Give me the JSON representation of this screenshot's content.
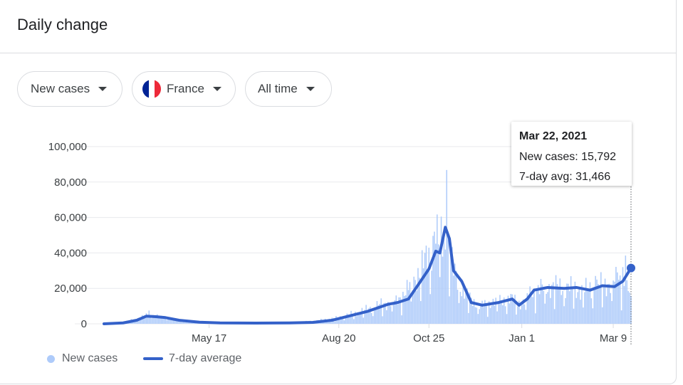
{
  "card": {
    "title": "Daily change"
  },
  "filters": {
    "metric": "New cases",
    "country": "France",
    "range": "All time"
  },
  "flag_colors": [
    "#002395",
    "#ffffff",
    "#ed2939"
  ],
  "tooltip": {
    "date": "Mar 22, 2021",
    "new_cases_label": "New cases: 15,792",
    "avg_label": "7-day avg: 31,466"
  },
  "legend": {
    "new_cases": "New cases",
    "avg": "7-day average"
  },
  "colors": {
    "bars": "#aecbfa",
    "line": "#3461c9",
    "grid": "#e8eaed"
  },
  "chart_data": {
    "type": "bar",
    "x_start": "2020-03-01",
    "x_end": "2021-03-22",
    "ylim": [
      0,
      100000
    ],
    "yticks": [
      0,
      20000,
      40000,
      60000,
      80000,
      100000
    ],
    "ytick_labels": [
      "0",
      "20,000",
      "40,000",
      "60,000",
      "80,000",
      "100,000"
    ],
    "xticks": [
      {
        "date": "2020-05-17",
        "label": "May 17"
      },
      {
        "date": "2020-08-20",
        "label": "Aug 20"
      },
      {
        "date": "2020-10-25",
        "label": "Oct 25"
      },
      {
        "date": "2021-01-01",
        "label": "Jan 1"
      },
      {
        "date": "2021-03-09",
        "label": "Mar 9"
      }
    ],
    "grid": true,
    "legend_position": "bottom-left",
    "series": [
      {
        "name": "New cases",
        "type": "bar",
        "anchors": [
          [
            "2020-03-01",
            0
          ],
          [
            "2020-03-15",
            800
          ],
          [
            "2020-03-28",
            3500
          ],
          [
            "2020-04-02",
            5000
          ],
          [
            "2020-04-10",
            4000
          ],
          [
            "2020-04-20",
            2500
          ],
          [
            "2020-05-01",
            1000
          ],
          [
            "2020-05-17",
            500
          ],
          [
            "2020-06-15",
            400
          ],
          [
            "2020-07-15",
            600
          ],
          [
            "2020-08-01",
            1500
          ],
          [
            "2020-08-20",
            3500
          ],
          [
            "2020-09-05",
            7000
          ],
          [
            "2020-09-20",
            11000
          ],
          [
            "2020-10-01",
            12500
          ],
          [
            "2020-10-10",
            20000
          ],
          [
            "2020-10-20",
            32000
          ],
          [
            "2020-10-28",
            44000
          ],
          [
            "2020-11-02",
            50000
          ],
          [
            "2020-11-07",
            48000
          ],
          [
            "2020-11-12",
            30000
          ],
          [
            "2020-11-20",
            17000
          ],
          [
            "2020-12-01",
            10000
          ],
          [
            "2020-12-15",
            13000
          ],
          [
            "2020-12-25",
            14000
          ],
          [
            "2021-01-01",
            11000
          ],
          [
            "2021-01-08",
            18000
          ],
          [
            "2021-01-20",
            21000
          ],
          [
            "2021-02-01",
            21000
          ],
          [
            "2021-02-15",
            19000
          ],
          [
            "2021-03-01",
            22000
          ],
          [
            "2021-03-15",
            25000
          ],
          [
            "2021-03-22",
            15792
          ]
        ],
        "spikes": [
          [
            "2020-04-03",
            7500
          ],
          [
            "2020-11-07",
            86800
          ],
          [
            "2020-11-03",
            60500
          ],
          [
            "2020-10-29",
            52000
          ],
          [
            "2021-03-18",
            38500
          ],
          [
            "2021-03-16",
            32000
          ],
          [
            "2021-03-12",
            29000
          ],
          [
            "2021-02-24",
            27000
          ]
        ]
      },
      {
        "name": "7-day average",
        "type": "line",
        "points": [
          [
            "2020-03-01",
            0
          ],
          [
            "2020-03-15",
            500
          ],
          [
            "2020-03-25",
            2000
          ],
          [
            "2020-04-01",
            4300
          ],
          [
            "2020-04-08",
            4000
          ],
          [
            "2020-04-15",
            3500
          ],
          [
            "2020-04-25",
            2000
          ],
          [
            "2020-05-10",
            900
          ],
          [
            "2020-05-25",
            500
          ],
          [
            "2020-06-20",
            400
          ],
          [
            "2020-07-15",
            500
          ],
          [
            "2020-08-01",
            800
          ],
          [
            "2020-08-15",
            2000
          ],
          [
            "2020-08-28",
            4500
          ],
          [
            "2020-09-10",
            7000
          ],
          [
            "2020-09-25",
            11000
          ],
          [
            "2020-10-02",
            12000
          ],
          [
            "2020-10-10",
            14000
          ],
          [
            "2020-10-18",
            23000
          ],
          [
            "2020-10-25",
            31000
          ],
          [
            "2020-10-30",
            41000
          ],
          [
            "2020-11-02",
            40000
          ],
          [
            "2020-11-06",
            54500
          ],
          [
            "2020-11-09",
            48000
          ],
          [
            "2020-11-12",
            30000
          ],
          [
            "2020-11-18",
            24000
          ],
          [
            "2020-11-25",
            12000
          ],
          [
            "2020-12-03",
            10500
          ],
          [
            "2020-12-15",
            12000
          ],
          [
            "2020-12-25",
            14000
          ],
          [
            "2020-12-30",
            10500
          ],
          [
            "2021-01-05",
            14000
          ],
          [
            "2021-01-10",
            19000
          ],
          [
            "2021-01-20",
            20500
          ],
          [
            "2021-02-01",
            20000
          ],
          [
            "2021-02-10",
            20500
          ],
          [
            "2021-02-20",
            19000
          ],
          [
            "2021-03-01",
            21500
          ],
          [
            "2021-03-10",
            21000
          ],
          [
            "2021-03-16",
            24000
          ],
          [
            "2021-03-22",
            31466
          ]
        ]
      }
    ]
  }
}
